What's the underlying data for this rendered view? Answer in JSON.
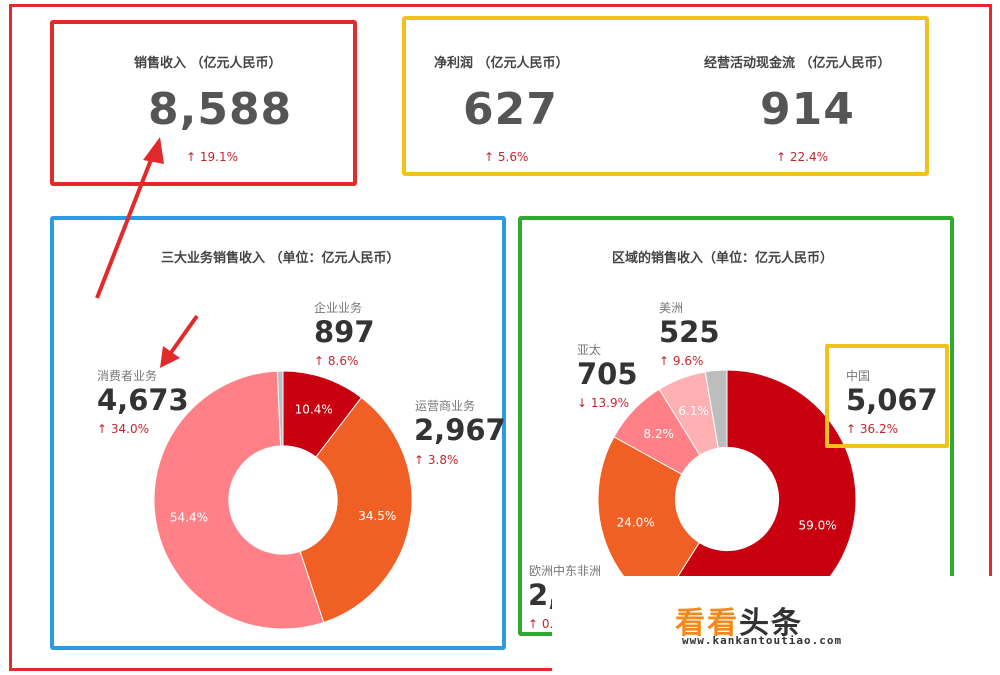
{
  "kpis": {
    "sales": {
      "label": "销售收入 （亿元人民币）",
      "value": "8,588",
      "change": "19.1%"
    },
    "profit": {
      "label": "净利润 （亿元人民币）",
      "value": "627",
      "change": "5.6%"
    },
    "cashflow": {
      "label": "经营活动现金流 （亿元人民币）",
      "value": "914",
      "change": "22.4%"
    }
  },
  "business": {
    "title": "三大业务销售收入 （单位：亿元人民币）",
    "segments": [
      {
        "name": "企业业务",
        "value": "897",
        "change": "8.6%"
      },
      {
        "name": "运营商业务",
        "value": "2,967",
        "change": "3.8%"
      },
      {
        "name": "消费者业务",
        "value": "4,673",
        "change": "34.0%"
      }
    ]
  },
  "region": {
    "title": "区域的销售收入（单位：亿元人民币）",
    "segments": [
      {
        "name": "美洲",
        "value": "525",
        "change": "9.6%"
      },
      {
        "name": "亚太",
        "value": "705",
        "change": "13.9%"
      },
      {
        "name": "中国",
        "value": "5,067",
        "change": "36.2%"
      },
      {
        "name": "欧洲中东非洲",
        "value": "2,",
        "change": "0."
      }
    ]
  },
  "chart_data": [
    {
      "type": "pie",
      "title": "三大业务销售收入 （单位：亿元人民币）",
      "categories": [
        "企业业务",
        "运营商业务",
        "消费者业务"
      ],
      "values": [
        10.4,
        34.5,
        54.4
      ],
      "labels": [
        "10.4%",
        "34.5%",
        "54.4%"
      ],
      "colors": [
        "#c8000f",
        "#f05f24",
        "#ff8087"
      ],
      "remainder_color": "#bdbdbd",
      "start_angle": 0,
      "inner_ratio": 0.42
    },
    {
      "type": "pie",
      "title": "区域的销售收入（单位：亿元人民币）",
      "categories": [
        "中国",
        "欧洲中东非洲",
        "亚太",
        "美洲"
      ],
      "values": [
        59.0,
        24.0,
        8.2,
        6.1
      ],
      "labels": [
        "59.0%",
        "24.0%",
        "8.2%",
        "6.1%"
      ],
      "colors": [
        "#c8000f",
        "#f05f24",
        "#ff8087",
        "#ffb0b3"
      ],
      "remainder_color": "#bdbdbd",
      "start_angle": 0,
      "inner_ratio": 0.4
    }
  ],
  "colors": {
    "up_arrow": "#c0272d",
    "down_arrow": "#c0272d",
    "highlight_red": "#e32a2a",
    "highlight_yellow": "#f1c21b",
    "highlight_blue": "#2d9be0",
    "highlight_green": "#2eaa2e"
  },
  "watermark": {
    "brand_light": "看看",
    "brand_dark": "头条",
    "url": "www.kankantoutiao.com"
  }
}
